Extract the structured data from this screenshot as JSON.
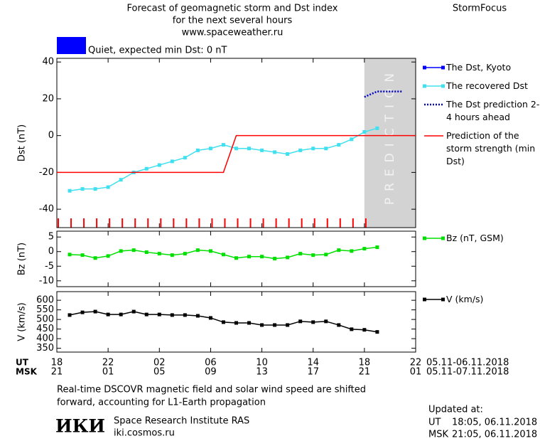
{
  "header": {
    "title": [
      "Forecast of geomagnetic storm and Dst index",
      "for the next several hours",
      "www.spaceweather.ru"
    ],
    "brand": "StormFocus"
  },
  "status": {
    "color": "#0000ff",
    "label": "Quiet, expected min Dst: 0 nT"
  },
  "chart_data": [
    {
      "type": "line",
      "ylabel": "Dst (nT)",
      "xlim": [
        0,
        28
      ],
      "ylim": [
        -50,
        42
      ],
      "yticks": [
        -40,
        -20,
        0,
        20,
        40
      ],
      "prediction": {
        "start": 24,
        "label": "PREDICTION",
        "color": "#d3d3d3"
      },
      "series": [
        {
          "name": "The Dst, Kyoto",
          "color": "#0000ff",
          "marker": "square",
          "line_style": "solid",
          "x": [],
          "values": []
        },
        {
          "name": "The recovered Dst",
          "color": "#40e0f0",
          "marker": "square",
          "line_style": "solid",
          "x": [
            1,
            2,
            3,
            4,
            5,
            6,
            7,
            8,
            9,
            10,
            11,
            12,
            13,
            14,
            15,
            16,
            17,
            18,
            19,
            20,
            21,
            22,
            23,
            24,
            25
          ],
          "values": [
            -30,
            -29,
            -29,
            -28,
            -24,
            -20,
            -18,
            -16,
            -14,
            -12,
            -8,
            -7,
            -5,
            -7,
            -7,
            -8,
            -9,
            -10,
            -8,
            -7,
            -7,
            -5,
            -2,
            2,
            4
          ]
        },
        {
          "name": "The Dst prediction 2-4 hours ahead",
          "color": "#0000cc",
          "marker": "none",
          "line_style": "dotted",
          "x": [
            24,
            25,
            26,
            27
          ],
          "values": [
            21,
            24,
            24,
            24
          ]
        },
        {
          "name": "Prediction of the storm strength (min Dst)",
          "color": "#ff0000",
          "marker": "none",
          "line_style": "solid",
          "x": [
            0,
            13,
            14,
            28
          ],
          "values": [
            -20,
            -20,
            0,
            0
          ]
        }
      ]
    },
    {
      "type": "line",
      "ylabel": "Bz (nT)",
      "xlim": [
        0,
        28
      ],
      "ylim": [
        -12,
        7
      ],
      "yticks": [
        -10,
        -5,
        0,
        5
      ],
      "series": [
        {
          "name": "Bz (nT, GSM)",
          "color": "#00e000",
          "marker": "square",
          "line_style": "solid",
          "x": [
            1,
            2,
            3,
            4,
            5,
            6,
            7,
            8,
            9,
            10,
            11,
            12,
            13,
            14,
            15,
            16,
            17,
            18,
            19,
            20,
            21,
            22,
            23,
            24,
            25
          ],
          "values": [
            -1,
            -1.2,
            -2.2,
            -1.5,
            0.2,
            0.5,
            -0.2,
            -0.7,
            -1.2,
            -0.7,
            0.5,
            0.2,
            -1,
            -2.2,
            -1.7,
            -1.7,
            -2.4,
            -2,
            -0.7,
            -1.2,
            -1,
            0.5,
            0.2,
            1,
            1.5
          ]
        }
      ]
    },
    {
      "type": "line",
      "ylabel": "V (km/s)",
      "xlim": [
        0,
        28
      ],
      "ylim": [
        330,
        645
      ],
      "yticks": [
        350,
        400,
        450,
        500,
        550,
        600
      ],
      "series": [
        {
          "name": "V (km/s)",
          "color": "#000000",
          "marker": "square",
          "line_style": "solid",
          "x": [
            1,
            2,
            3,
            4,
            5,
            6,
            7,
            8,
            9,
            10,
            11,
            12,
            13,
            14,
            15,
            16,
            17,
            18,
            19,
            20,
            21,
            22,
            23,
            24,
            25
          ],
          "values": [
            523,
            537,
            541,
            526,
            526,
            541,
            526,
            526,
            523,
            523,
            519,
            508,
            486,
            482,
            482,
            471,
            471,
            471,
            490,
            486,
            490,
            471,
            449,
            446,
            435
          ]
        }
      ],
      "xticks": [
        {
          "value": 0,
          "label": "18"
        },
        {
          "value": 4,
          "label": "22"
        },
        {
          "value": 8,
          "label": "02"
        },
        {
          "value": 12,
          "label": "06"
        },
        {
          "value": 16,
          "label": "10"
        },
        {
          "value": 20,
          "label": "14"
        },
        {
          "value": 24,
          "label": "18"
        },
        {
          "value": 28,
          "label": "22"
        }
      ],
      "msk_ticks": [
        {
          "value": 0,
          "label": "21"
        },
        {
          "value": 4,
          "label": "01"
        },
        {
          "value": 8,
          "label": "05"
        },
        {
          "value": 12,
          "label": "09"
        },
        {
          "value": 16,
          "label": "13"
        },
        {
          "value": 20,
          "label": "17"
        },
        {
          "value": 24,
          "label": "21"
        },
        {
          "value": 28,
          "label": "01"
        }
      ],
      "axis_rows": [
        {
          "label": "UT",
          "dates": "05.11-06.11.2018"
        },
        {
          "label": "MSK",
          "dates": "05.11-07.11.2018"
        }
      ]
    }
  ],
  "footer": {
    "note": [
      "Real-time DSCOVR magnetic field and solar wind speed are shifted",
      "forward, accounting for L1-Earth propagation"
    ],
    "logo": "ИКИ",
    "institute": "Space Research Institute RAS",
    "site": "iki.cosmos.ru",
    "updated": {
      "label": "Updated at:",
      "rows": [
        {
          "zone": "UT",
          "time": "18:05, 06.11.2018"
        },
        {
          "zone": "MSK",
          "time": "21:05, 06.11.2018"
        }
      ]
    }
  }
}
